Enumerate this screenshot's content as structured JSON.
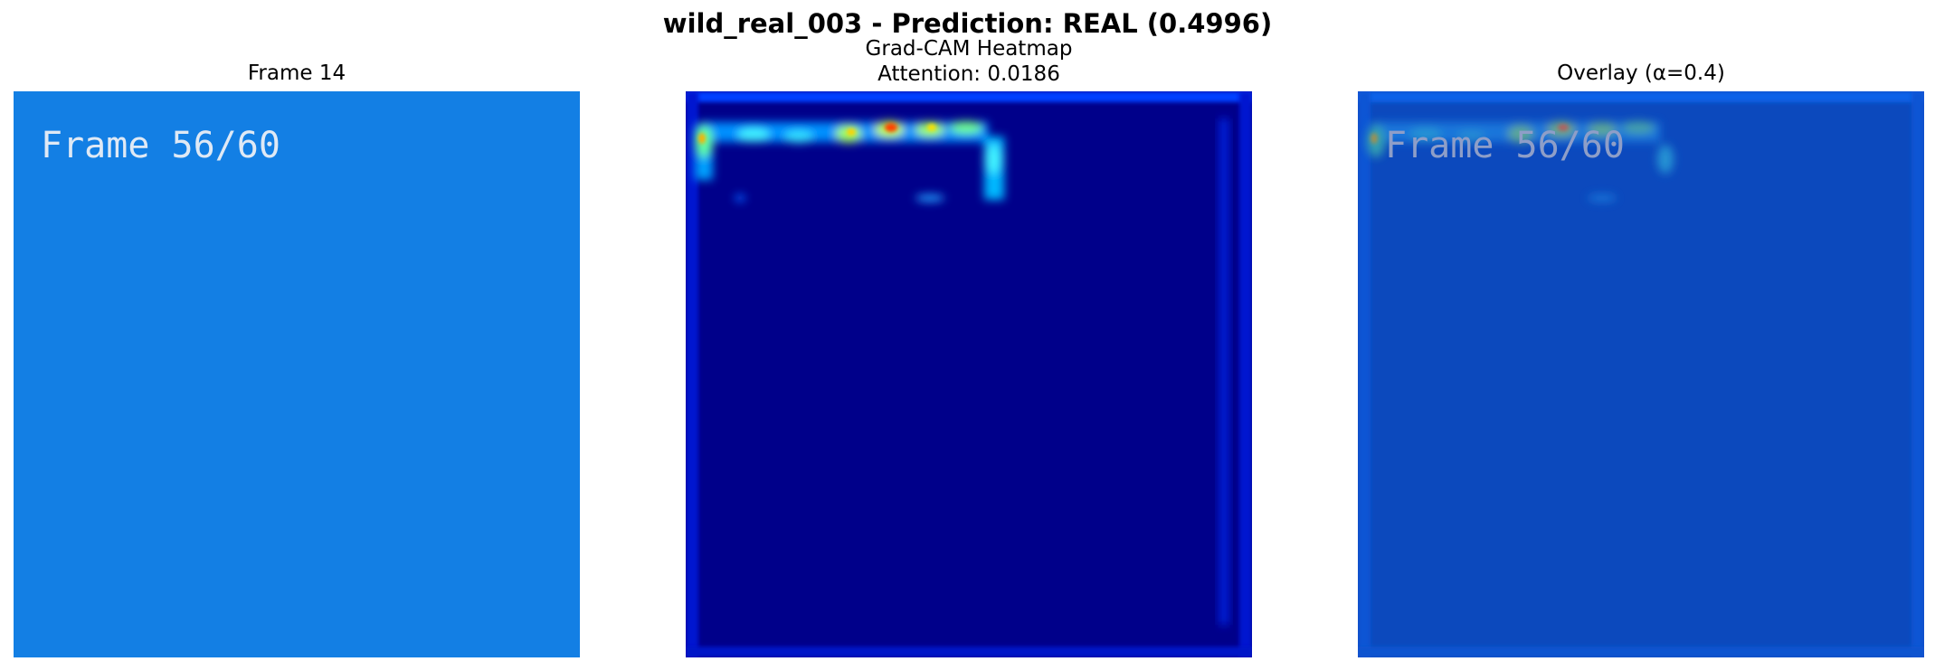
{
  "figure": {
    "title": "wild_real_003 - Prediction: REAL (0.4996)"
  },
  "panels": [
    {
      "title": "Frame 14",
      "frame_text": "Frame 56/60"
    },
    {
      "title_line1": "Grad-CAM Heatmap",
      "title_line2": "Attention: 0.0186"
    },
    {
      "title": "Overlay (α=0.4)",
      "frame_text": "Frame 56/60"
    }
  ],
  "colors": {
    "frame_background": "#137fe4",
    "heatmap_background": "#00008a",
    "overlay_background": "#0c49bd",
    "frame_text": "#dfe9f5",
    "overlay_text": "#8e9ec8"
  }
}
